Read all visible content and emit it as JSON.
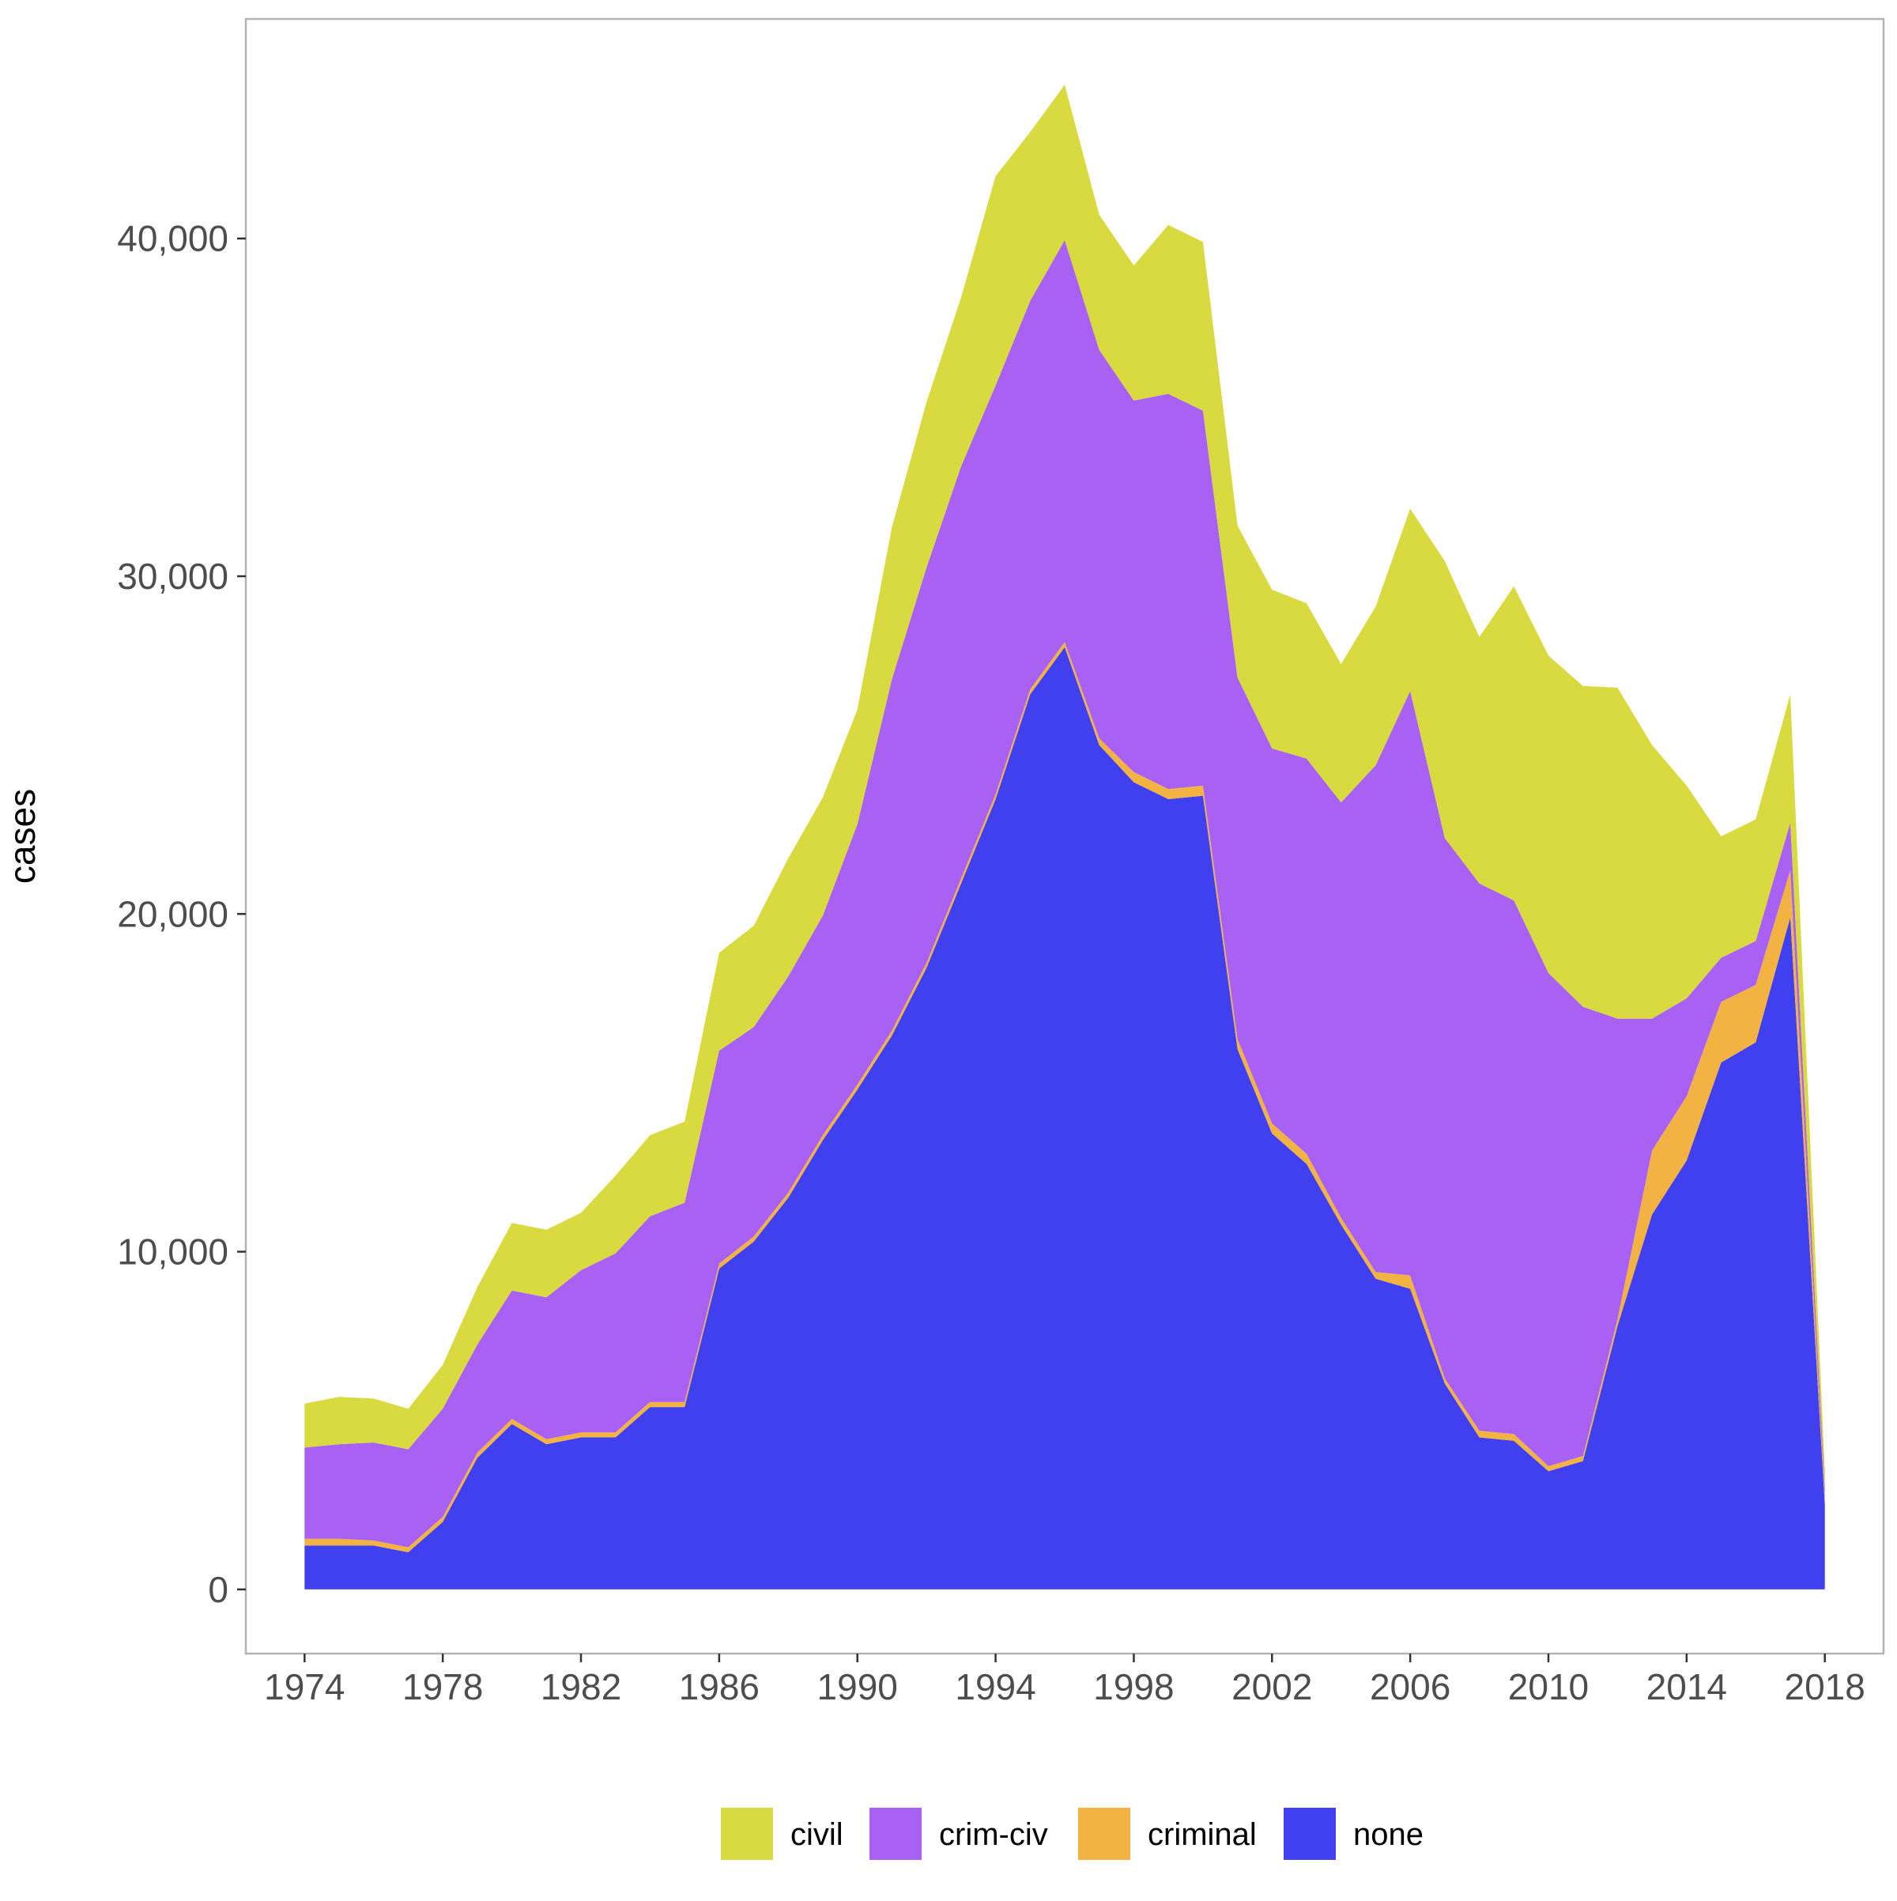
{
  "chart_data": {
    "type": "area",
    "stacked": true,
    "title": "",
    "xlabel": "",
    "ylabel": "cases",
    "xlim": [
      1972.3,
      2019.7
    ],
    "ylim": [
      -1900,
      46500
    ],
    "x_ticks": [
      1974,
      1978,
      1982,
      1986,
      1990,
      1994,
      1998,
      2002,
      2006,
      2010,
      2014,
      2018
    ],
    "y_ticks": [
      0,
      10000,
      20000,
      30000,
      40000
    ],
    "y_tick_labels": [
      "0",
      "10,000",
      "20,000",
      "30,000",
      "40,000"
    ],
    "grid": false,
    "legend_position": "bottom",
    "x": [
      1974,
      1975,
      1976,
      1977,
      1978,
      1979,
      1980,
      1981,
      1982,
      1983,
      1984,
      1985,
      1986,
      1987,
      1988,
      1989,
      1990,
      1991,
      1992,
      1993,
      1994,
      1995,
      1996,
      1997,
      1998,
      1999,
      2000,
      2001,
      2002,
      2003,
      2004,
      2005,
      2006,
      2007,
      2008,
      2009,
      2010,
      2011,
      2012,
      2013,
      2014,
      2015,
      2016,
      2017,
      2018
    ],
    "series": [
      {
        "name": "none",
        "color": "#4040f0",
        "values": [
          1300,
          1300,
          1300,
          1100,
          2000,
          3900,
          4900,
          4300,
          4500,
          4500,
          5400,
          5400,
          9500,
          10300,
          11600,
          13300,
          14800,
          16400,
          18400,
          20900,
          23400,
          26500,
          27900,
          25000,
          23900,
          23400,
          23500,
          16000,
          13500,
          12600,
          10800,
          9200,
          8900,
          6100,
          4500,
          4400,
          3500,
          3800,
          7800,
          11100,
          12700,
          15600,
          16200,
          19900,
          2500
        ]
      },
      {
        "name": "criminal",
        "color": "#f2b342",
        "values": [
          200,
          200,
          150,
          150,
          150,
          150,
          150,
          150,
          150,
          150,
          150,
          150,
          150,
          150,
          150,
          150,
          150,
          150,
          150,
          150,
          150,
          150,
          150,
          200,
          300,
          300,
          300,
          300,
          300,
          300,
          200,
          200,
          400,
          150,
          200,
          200,
          150,
          150,
          200,
          1900,
          1900,
          1800,
          1700,
          1400,
          200
        ]
      },
      {
        "name": "crim-civ",
        "color": "#a861f2",
        "values": [
          2700,
          2800,
          2900,
          2900,
          3200,
          3200,
          3800,
          4200,
          4800,
          5300,
          5500,
          5900,
          6300,
          6200,
          6400,
          6500,
          7700,
          10400,
          11700,
          12200,
          12100,
          11500,
          11900,
          11500,
          11000,
          11700,
          11100,
          10700,
          11100,
          11700,
          12300,
          15000,
          17300,
          16000,
          16200,
          15800,
          14600,
          13300,
          8900,
          3900,
          2900,
          1300,
          1300,
          1400,
          300
        ]
      },
      {
        "name": "civil",
        "color": "#d9d940",
        "values": [
          1300,
          1400,
          1300,
          1200,
          1300,
          1700,
          2000,
          2000,
          1700,
          2300,
          2400,
          2400,
          2900,
          3000,
          3500,
          3500,
          3400,
          4500,
          4900,
          5000,
          6200,
          5000,
          4600,
          4000,
          4000,
          5000,
          5000,
          4500,
          4700,
          4600,
          4100,
          4700,
          5400,
          8200,
          7300,
          9300,
          9400,
          9500,
          9800,
          8100,
          6300,
          3600,
          3600,
          3800,
          500
        ]
      }
    ],
    "legend": [
      {
        "label": "civil",
        "color": "#d9d940"
      },
      {
        "label": "crim-civ",
        "color": "#a861f2"
      },
      {
        "label": "criminal",
        "color": "#f2b342"
      },
      {
        "label": "none",
        "color": "#4040f0"
      }
    ]
  }
}
